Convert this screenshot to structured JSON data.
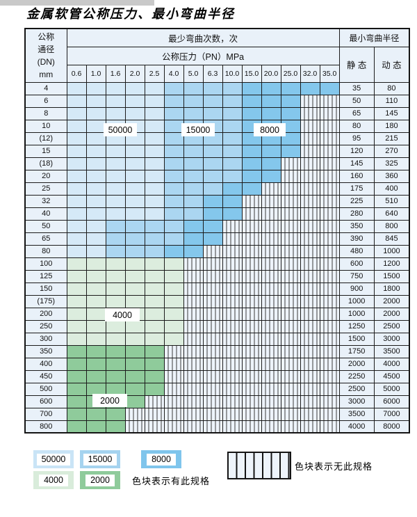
{
  "title": "金属软管公称压力、最小弯曲半径",
  "colors": {
    "A": "#d5e9f7",
    "B": "#abd6f1",
    "C": "#84c7ec",
    "D": "#dcedde",
    "E": "#8fcb9b",
    "unavailable_bg": "#eef4fb",
    "header_bg": "#e9f1f9"
  },
  "table": {
    "header": {
      "dn_label": "公称\n通径\n(DN)\nmm",
      "bend_cycles_label": "最少弯曲次数，次",
      "pressure_label": "公称压力（PN）MPa",
      "min_bend_radius_label": "最小弯曲半径",
      "static_label": "静 态",
      "dynamic_label": "动 态",
      "pressure_columns": [
        "0.6",
        "1.0",
        "1.6",
        "2.0",
        "2.5",
        "4.0",
        "5.0",
        "6.3",
        "10.0",
        "15.0",
        "20.0",
        "25.0",
        "32.0",
        "35.0"
      ]
    },
    "cell_codes": {
      "A": "50000次",
      "B": "15000次",
      "C": "8000次",
      "D": "4000次",
      "E": "2000次",
      "X": "无此规格"
    },
    "rows": [
      {
        "dn": "4",
        "static": "35",
        "dynamic": "80",
        "cells": "AAAAABBBBCCCCC"
      },
      {
        "dn": "6",
        "static": "50",
        "dynamic": "110",
        "cells": "AAAAABBBBCCCXX"
      },
      {
        "dn": "8",
        "static": "65",
        "dynamic": "145",
        "cells": "AAAAABBBBCCCXX"
      },
      {
        "dn": "10",
        "static": "80",
        "dynamic": "180",
        "cells": "AAAAABBBBCCCXX"
      },
      {
        "dn": "(12)",
        "static": "95",
        "dynamic": "215",
        "cells": "AAAAABBBBCCCXX"
      },
      {
        "dn": "15",
        "static": "120",
        "dynamic": "270",
        "cells": "AAAAABBBBCCCXX"
      },
      {
        "dn": "(18)",
        "static": "145",
        "dynamic": "325",
        "cells": "AAAAABBBBCCXXX"
      },
      {
        "dn": "20",
        "static": "160",
        "dynamic": "360",
        "cells": "AAAAABBBBCCXXX"
      },
      {
        "dn": "25",
        "static": "175",
        "dynamic": "400",
        "cells": "AAAAABBBCCXXXX"
      },
      {
        "dn": "32",
        "static": "225",
        "dynamic": "510",
        "cells": "AAAAABBCCXXXXX"
      },
      {
        "dn": "40",
        "static": "280",
        "dynamic": "640",
        "cells": "AAAAABBCCXXXXX"
      },
      {
        "dn": "50",
        "static": "350",
        "dynamic": "800",
        "cells": "AABBBBCCXXXXXX"
      },
      {
        "dn": "65",
        "static": "390",
        "dynamic": "845",
        "cells": "AABBBBCCXXXXXX"
      },
      {
        "dn": "80",
        "static": "480",
        "dynamic": "1000",
        "cells": "AABBBCCXXXXXXX"
      },
      {
        "dn": "100",
        "static": "600",
        "dynamic": "1200",
        "cells": "DDDDDDXXXXXXXX"
      },
      {
        "dn": "125",
        "static": "750",
        "dynamic": "1500",
        "cells": "DDDDDDXXXXXXXX"
      },
      {
        "dn": "150",
        "static": "900",
        "dynamic": "1800",
        "cells": "DDDDDDXXXXXXXX"
      },
      {
        "dn": "(175)",
        "static": "1000",
        "dynamic": "2000",
        "cells": "DDDDDDXXXXXXXX"
      },
      {
        "dn": "200",
        "static": "1000",
        "dynamic": "2000",
        "cells": "DDDDDDXXXXXXXX"
      },
      {
        "dn": "250",
        "static": "1250",
        "dynamic": "2500",
        "cells": "DDDDDDXXXXXXXX"
      },
      {
        "dn": "300",
        "static": "1500",
        "dynamic": "3000",
        "cells": "DDDDDDXXXXXXXX"
      },
      {
        "dn": "350",
        "static": "1750",
        "dynamic": "3500",
        "cells": "EEEEEXXXXXXXXX"
      },
      {
        "dn": "400",
        "static": "2000",
        "dynamic": "4000",
        "cells": "EEEEEXXXXXXXXX"
      },
      {
        "dn": "450",
        "static": "2250",
        "dynamic": "4500",
        "cells": "EEEEEXXXXXXXXX"
      },
      {
        "dn": "500",
        "static": "2500",
        "dynamic": "5000",
        "cells": "EEEEEXXXXXXXXX"
      },
      {
        "dn": "600",
        "static": "3000",
        "dynamic": "6000",
        "cells": "EEEEXXXXXXXXXX"
      },
      {
        "dn": "700",
        "static": "3500",
        "dynamic": "7000",
        "cells": "EEEXXXXXXXXXXX"
      },
      {
        "dn": "800",
        "static": "4000",
        "dynamic": "8000",
        "cells": "EEEXXXXXXXXXXX"
      }
    ],
    "overlay_labels": [
      {
        "text": "50000",
        "over_row": "10",
        "over_columns": "1.6–2.0"
      },
      {
        "text": "15000",
        "over_row": "10",
        "over_columns": "5.0–6.3"
      },
      {
        "text": "8000",
        "over_row": "10",
        "over_columns": "15.0–20.0"
      },
      {
        "text": "4000",
        "over_row": "200",
        "over_columns": "1.6–2.0"
      },
      {
        "text": "2000",
        "over_row": "600",
        "over_columns": "1.6–2.0"
      }
    ]
  },
  "legend": {
    "available_items": [
      {
        "value": "50000",
        "color_key": "A",
        "swatch_color": "#c9e4f6"
      },
      {
        "value": "15000",
        "color_key": "B",
        "swatch_color": "#a5d3ef"
      },
      {
        "value": "8000",
        "color_key": "C",
        "swatch_color": "#7fc5ec"
      },
      {
        "value": "4000",
        "color_key": "D",
        "swatch_color": "#d9ecdb"
      },
      {
        "value": "2000",
        "color_key": "E",
        "swatch_color": "#8fcb9b"
      }
    ],
    "available_note": "色块表示有此规格",
    "unavailable_note": "色块表示无此规格"
  }
}
